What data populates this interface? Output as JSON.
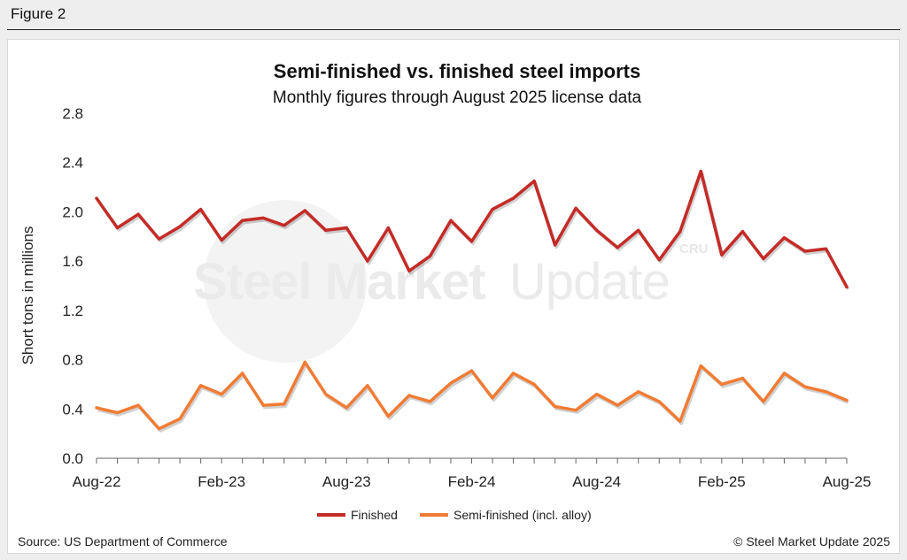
{
  "figure_label": "Figure 2",
  "watermark": {
    "brand_bold": "Steel Market",
    "brand_light": "Update",
    "badge": "CRU"
  },
  "footer": {
    "source": "Source: US Department of Commerce",
    "copyright": "© Steel Market Update 2025"
  },
  "colors": {
    "finished": "#c42b27",
    "semi": "#f07c35",
    "axis": "#666666"
  },
  "chart_data": {
    "type": "line",
    "title": "Semi-finished vs. finished steel imports",
    "subtitle": "Monthly figures through August 2025 license data",
    "xlabel": "",
    "ylabel": "Short tons in millions",
    "ylim": [
      0,
      2.8
    ],
    "yticks": [
      "0.0",
      "0.4",
      "0.8",
      "1.2",
      "1.6",
      "2.0",
      "2.4",
      "2.8"
    ],
    "x": [
      "Aug-22",
      "Sep-22",
      "Oct-22",
      "Nov-22",
      "Dec-22",
      "Jan-23",
      "Feb-23",
      "Mar-23",
      "Apr-23",
      "May-23",
      "Jun-23",
      "Jul-23",
      "Aug-23",
      "Sep-23",
      "Oct-23",
      "Nov-23",
      "Dec-23",
      "Jan-24",
      "Feb-24",
      "Mar-24",
      "Apr-24",
      "May-24",
      "Jun-24",
      "Jul-24",
      "Aug-24",
      "Sep-24",
      "Oct-24",
      "Nov-24",
      "Dec-24",
      "Jan-25",
      "Feb-25",
      "Mar-25",
      "Apr-25",
      "May-25",
      "Jun-25",
      "Jul-25",
      "Aug-25"
    ],
    "xtick_labels": [
      "Aug-22",
      "Feb-23",
      "Aug-23",
      "Feb-24",
      "Aug-24",
      "Feb-25",
      "Aug-25"
    ],
    "legend": "bottom-center",
    "grid": false,
    "series": [
      {
        "name": "Finished",
        "values": [
          2.11,
          1.87,
          1.98,
          1.78,
          1.88,
          2.02,
          1.77,
          1.93,
          1.95,
          1.89,
          2.01,
          1.85,
          1.87,
          1.6,
          1.87,
          1.52,
          1.64,
          1.93,
          1.76,
          2.02,
          2.11,
          2.25,
          1.73,
          2.03,
          1.85,
          1.71,
          1.85,
          1.61,
          1.84,
          2.33,
          1.65,
          1.84,
          1.62,
          1.79,
          1.68,
          1.7,
          1.39
        ]
      },
      {
        "name": "Semi-finished (incl. alloy)",
        "values": [
          0.41,
          0.37,
          0.43,
          0.24,
          0.32,
          0.59,
          0.52,
          0.69,
          0.43,
          0.44,
          0.78,
          0.52,
          0.41,
          0.59,
          0.34,
          0.51,
          0.46,
          0.61,
          0.71,
          0.49,
          0.69,
          0.6,
          0.42,
          0.39,
          0.52,
          0.43,
          0.54,
          0.46,
          0.3,
          0.75,
          0.6,
          0.65,
          0.46,
          0.69,
          0.58,
          0.54,
          0.47
        ]
      }
    ]
  }
}
